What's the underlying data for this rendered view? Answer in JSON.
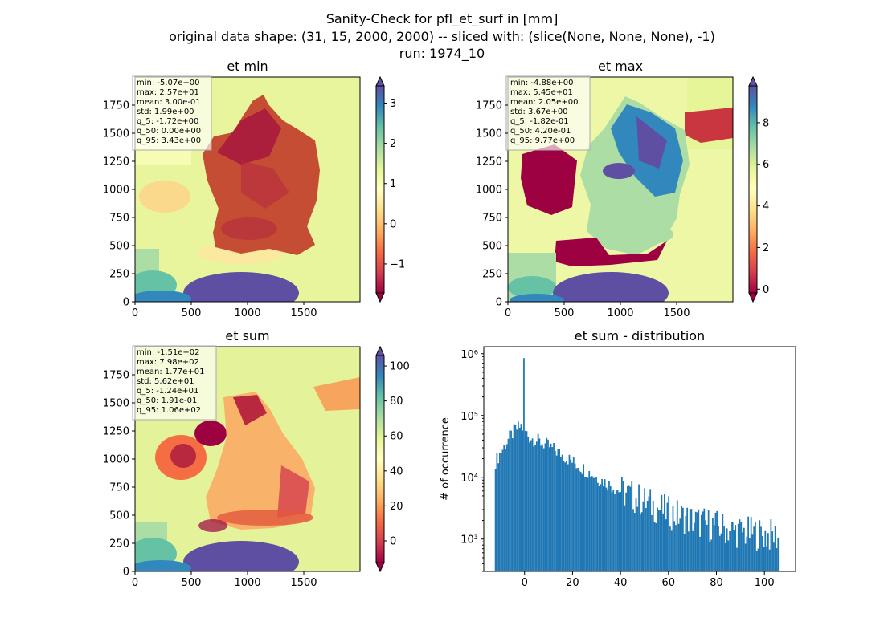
{
  "figure": {
    "title_lines": [
      "Sanity-Check for pfl_et_surf in [mm]",
      "original data shape: (31, 15, 2000, 2000) -- sliced with: (slice(None, None, None), -1)",
      "run: 1974_10"
    ]
  },
  "chart_data": [
    {
      "type": "heatmap",
      "title": "et min",
      "xticks": [
        "0",
        "500",
        "1000",
        "1500"
      ],
      "yticks": [
        "0",
        "250",
        "500",
        "750",
        "1000",
        "1250",
        "1500",
        "1750"
      ],
      "xlim": [
        0,
        2000
      ],
      "ylim": [
        0,
        2000
      ],
      "colormap": "Spectral",
      "colorbar": {
        "range": [
          -1.72,
          3.43
        ],
        "ticks": [
          "−1",
          "0",
          "1",
          "2",
          "3"
        ],
        "tick_values": [
          -1,
          0,
          1,
          2,
          3
        ],
        "extend": "both"
      },
      "stats": [
        "min: -5.07e+00",
        "max: 2.57e+01",
        "mean: 3.00e-01",
        "std: 1.99e+00",
        "q_5: -1.72e+00",
        "q_50: 0.00e+00",
        "q_95: 3.43e+00"
      ]
    },
    {
      "type": "heatmap",
      "title": "et max",
      "xticks": [
        "0",
        "500",
        "1000",
        "1500"
      ],
      "yticks": [
        "0",
        "250",
        "500",
        "750",
        "1000",
        "1250",
        "1500",
        "1750"
      ],
      "xlim": [
        0,
        2000
      ],
      "ylim": [
        0,
        2000
      ],
      "colormap": "Spectral",
      "colorbar": {
        "range": [
          -0.182,
          9.77
        ],
        "ticks": [
          "0",
          "2",
          "4",
          "6",
          "8"
        ],
        "tick_values": [
          0,
          2,
          4,
          6,
          8
        ],
        "extend": "both"
      },
      "stats": [
        "min: -4.88e+00",
        "max: 5.45e+01",
        "mean: 2.05e+00",
        "std: 3.67e+00",
        "q_5: -1.82e-01",
        "q_50: 4.20e-01",
        "q_95: 9.77e+00"
      ]
    },
    {
      "type": "heatmap",
      "title": "et sum",
      "xticks": [
        "0",
        "500",
        "1000",
        "1500"
      ],
      "yticks": [
        "0",
        "250",
        "500",
        "750",
        "1000",
        "1250",
        "1500",
        "1750"
      ],
      "xlim": [
        0,
        2000
      ],
      "ylim": [
        0,
        2000
      ],
      "colormap": "Spectral",
      "colorbar": {
        "range": [
          -12.4,
          106
        ],
        "ticks": [
          "0",
          "20",
          "40",
          "60",
          "80",
          "100"
        ],
        "tick_values": [
          0,
          20,
          40,
          60,
          80,
          100
        ],
        "extend": "both"
      },
      "stats": [
        "min: -1.51e+02",
        "max: 7.98e+02",
        "mean: 1.77e+01",
        "std: 5.62e+01",
        "q_5: -1.24e+01",
        "q_50: 1.91e-01",
        "q_95: 1.06e+02"
      ]
    },
    {
      "type": "bar",
      "title": "et sum - distribution",
      "xlabel": "",
      "ylabel": "# of occurrence",
      "yscale": "log",
      "xlim": [
        -17,
        113
      ],
      "ylim": [
        300,
        1300000
      ],
      "xticks": [
        "0",
        "20",
        "40",
        "60",
        "80",
        "100"
      ],
      "xtick_values": [
        0,
        20,
        40,
        60,
        80,
        100
      ],
      "yticks": [
        "10³",
        "10⁴",
        "10⁵",
        "10⁶"
      ],
      "ytick_values": [
        1000,
        10000,
        100000,
        1000000
      ],
      "color": "#1f77b4",
      "bin_range": [
        -12.4,
        106
      ],
      "spike": {
        "x": -0.3,
        "value": 850000
      },
      "envelope": [
        {
          "x": -12.4,
          "value": 17000
        },
        {
          "x": -10,
          "value": 25000
        },
        {
          "x": -7,
          "value": 40000
        },
        {
          "x": -4,
          "value": 58000
        },
        {
          "x": -1.5,
          "value": 68000
        },
        {
          "x": 2,
          "value": 45000
        },
        {
          "x": 10,
          "value": 32000
        },
        {
          "x": 20,
          "value": 18000
        },
        {
          "x": 30,
          "value": 10000
        },
        {
          "x": 40,
          "value": 6000
        },
        {
          "x": 50,
          "value": 4000
        },
        {
          "x": 60,
          "value": 2700
        },
        {
          "x": 70,
          "value": 2000
        },
        {
          "x": 80,
          "value": 1600
        },
        {
          "x": 90,
          "value": 1300
        },
        {
          "x": 106,
          "value": 1100
        }
      ]
    }
  ]
}
